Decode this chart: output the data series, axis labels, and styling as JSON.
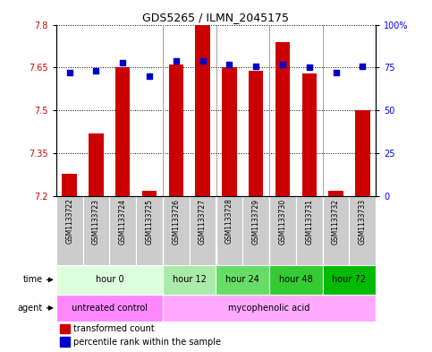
{
  "title": "GDS5265 / ILMN_2045175",
  "samples": [
    "GSM1133722",
    "GSM1133723",
    "GSM1133724",
    "GSM1133725",
    "GSM1133726",
    "GSM1133727",
    "GSM1133728",
    "GSM1133729",
    "GSM1133730",
    "GSM1133731",
    "GSM1133732",
    "GSM1133733"
  ],
  "transformed_count": [
    7.28,
    7.42,
    7.65,
    7.22,
    7.66,
    7.8,
    7.65,
    7.64,
    7.74,
    7.63,
    7.22,
    7.5
  ],
  "percentile_rank": [
    72,
    73,
    78,
    70,
    79,
    79,
    77,
    76,
    77,
    75,
    72,
    76
  ],
  "ylim_left": [
    7.2,
    7.8
  ],
  "ylim_right": [
    0,
    100
  ],
  "yticks_left": [
    7.2,
    7.35,
    7.5,
    7.65,
    7.8
  ],
  "yticks_right": [
    0,
    25,
    50,
    75,
    100
  ],
  "bar_color": "#cc0000",
  "dot_color": "#0000cc",
  "bar_bottom": 7.2,
  "sample_box_color": "#cccccc",
  "time_groups": [
    {
      "label": "hour 0",
      "start": 0,
      "end": 4,
      "color": "#ddffdd"
    },
    {
      "label": "hour 12",
      "start": 4,
      "end": 6,
      "color": "#aaeaaa"
    },
    {
      "label": "hour 24",
      "start": 6,
      "end": 8,
      "color": "#66dd66"
    },
    {
      "label": "hour 48",
      "start": 8,
      "end": 10,
      "color": "#33cc33"
    },
    {
      "label": "hour 72",
      "start": 10,
      "end": 12,
      "color": "#00bb00"
    }
  ],
  "agent_groups": [
    {
      "label": "untreated control",
      "start": 0,
      "end": 4,
      "color": "#ff88ff"
    },
    {
      "label": "mycophenolic acid",
      "start": 4,
      "end": 12,
      "color": "#ffaaff"
    }
  ],
  "legend_bar_label": "transformed count",
  "legend_dot_label": "percentile rank within the sample",
  "xlabel_time": "time",
  "xlabel_agent": "agent"
}
